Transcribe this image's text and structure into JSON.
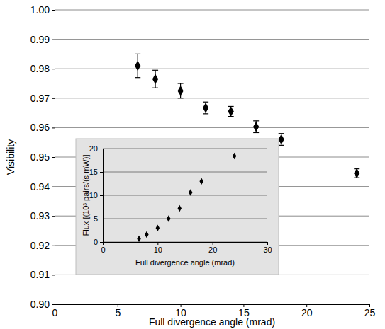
{
  "chart_data": [
    {
      "type": "scatter",
      "x_label": "Full divergence angle (mrad)",
      "y_label": "Visibility",
      "x": [
        6.6,
        8,
        10,
        12,
        14,
        16,
        18,
        24
      ],
      "values": [
        0.981,
        0.9765,
        0.9725,
        0.9667,
        0.9655,
        0.9603,
        0.956,
        0.9445
      ],
      "errors": [
        0.004,
        0.003,
        0.0025,
        0.002,
        0.0017,
        0.002,
        0.002,
        0.0015
      ],
      "xlim": [
        0,
        25
      ],
      "xticks": [
        0,
        5,
        10,
        15,
        20,
        25
      ],
      "ylim": [
        0.9,
        1.0
      ],
      "yticks": [
        {
          "value": 0.9,
          "label": "0.90"
        },
        0.91,
        0.92,
        0.93,
        0.94,
        0.95,
        0.96,
        0.97,
        0.98,
        0.99,
        {
          "value": 1.0,
          "label": "1.00"
        }
      ],
      "grid": true,
      "color": "#000000",
      "marker": "diamond"
    },
    {
      "type": "scatter",
      "x_label": "Full divergence angle (mrad)",
      "y_label": "Flux [(10³ pairs/(s mW)]",
      "x": [
        6.6,
        8,
        10,
        12,
        14,
        16,
        18,
        24
      ],
      "values": [
        0.7,
        1.6,
        3.0,
        5.0,
        7.2,
        10.6,
        13.0,
        18.4
      ],
      "xlim": [
        0,
        30
      ],
      "xticks": [
        0,
        10,
        20,
        30
      ],
      "ylim": [
        0,
        20
      ],
      "yticks": [
        0,
        5,
        10,
        15,
        20
      ],
      "grid": true,
      "color": "#000000",
      "marker": "diamond"
    }
  ]
}
